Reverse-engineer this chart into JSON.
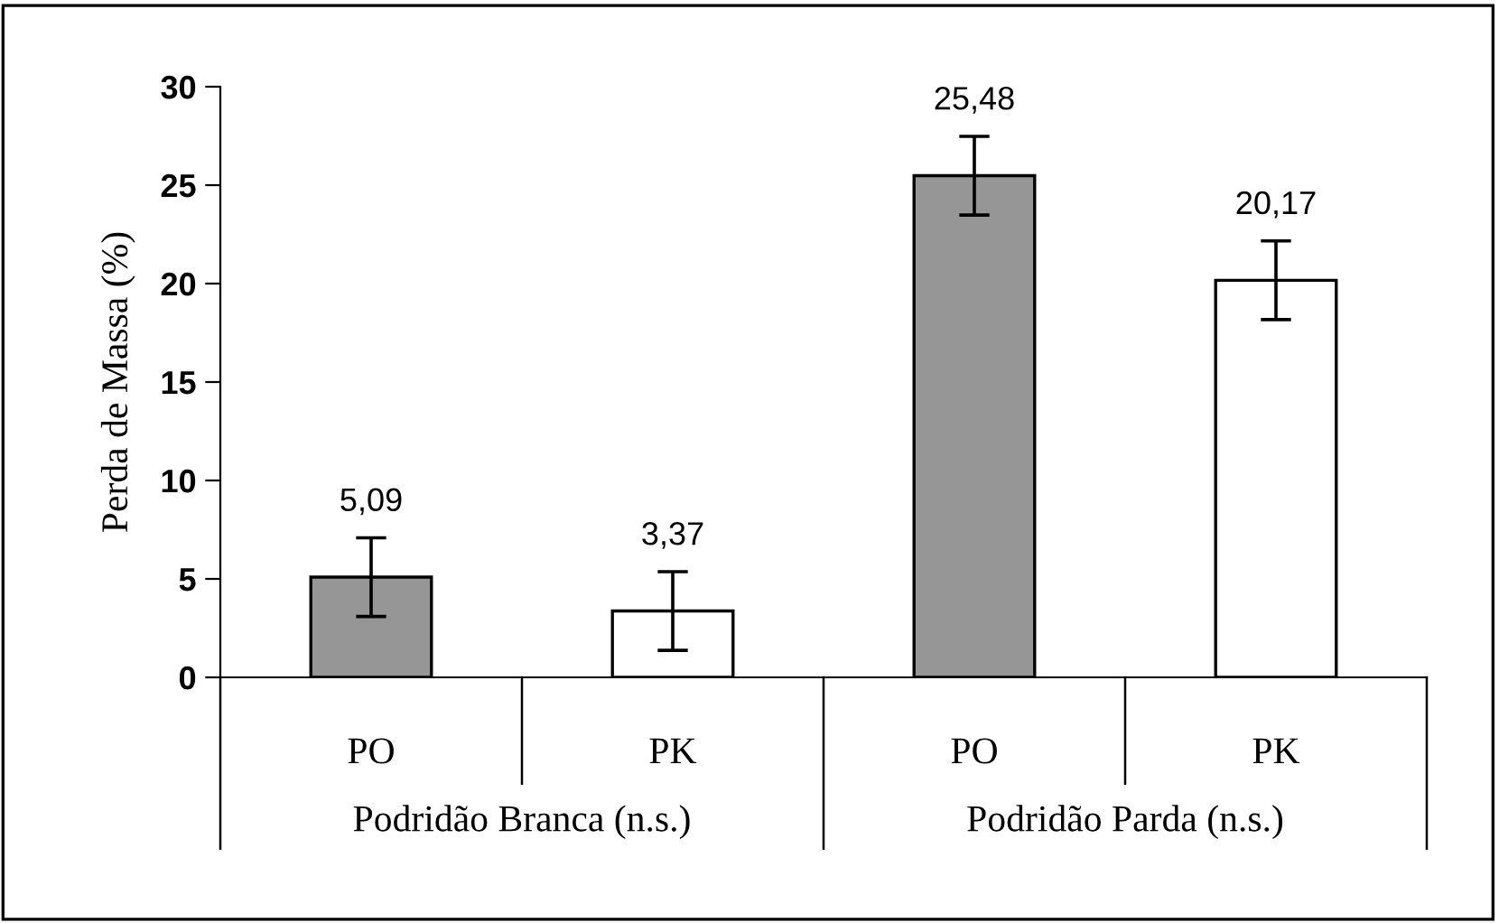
{
  "chart_data": {
    "type": "bar",
    "ylabel": "Perda de Massa (%)",
    "categories": [
      "PO",
      "PK",
      "PO",
      "PK"
    ],
    "values": [
      5.09,
      3.37,
      25.48,
      20.17
    ],
    "value_labels": [
      "5,09",
      "3,37",
      "25,48",
      "20,17"
    ],
    "errors": [
      2.0,
      2.0,
      2.0,
      2.0
    ],
    "colors": [
      "#969696",
      "#ffffff",
      "#969696",
      "#ffffff"
    ],
    "annotations": [
      "Podridão Branca (n.s.)",
      "Podridão Parda (n.s.)"
    ],
    "ylim": [
      0,
      30
    ],
    "yticks": [
      0,
      5,
      10,
      15,
      20,
      25,
      30
    ],
    "grid": false,
    "legend": false
  }
}
